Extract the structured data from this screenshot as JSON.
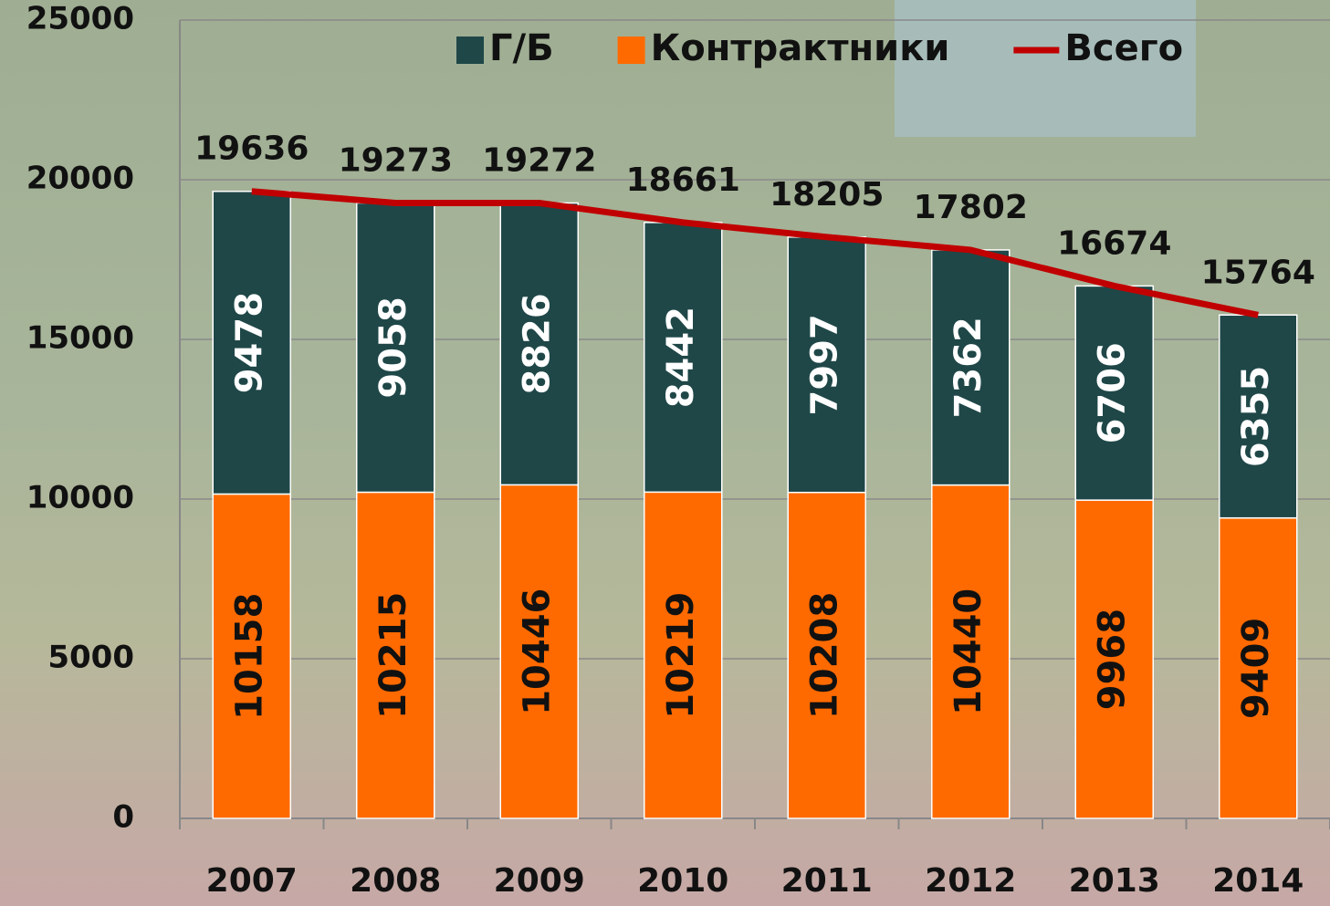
{
  "chart_data": {
    "type": "bar",
    "stacked": true,
    "categories": [
      "2007",
      "2008",
      "2009",
      "2010",
      "2011",
      "2012",
      "2013",
      "2014"
    ],
    "series": [
      {
        "name": "Г/Б",
        "color": "#1f4748",
        "values": [
          9478,
          9058,
          8826,
          8442,
          7997,
          7362,
          6706,
          6355
        ]
      },
      {
        "name": "Контрактники",
        "color": "#ff6a00",
        "values": [
          10158,
          10215,
          10446,
          10219,
          10208,
          10440,
          9968,
          9409
        ]
      },
      {
        "name": "Всего",
        "type": "line",
        "color": "#c00000",
        "values": [
          19636,
          19273,
          19272,
          18661,
          18205,
          17802,
          16674,
          15764
        ]
      }
    ],
    "ylim": [
      0,
      25000
    ],
    "yticks": [
      0,
      5000,
      10000,
      15000,
      20000,
      25000
    ],
    "grid": true,
    "legend": "top"
  }
}
